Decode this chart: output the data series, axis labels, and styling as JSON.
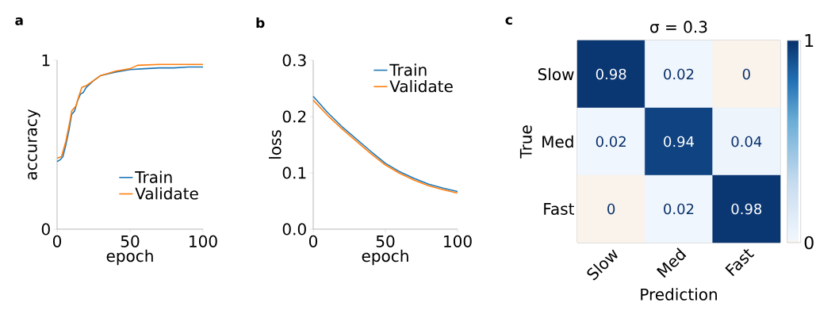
{
  "chart_data": [
    {
      "type": "line",
      "annotations": [
        "a"
      ],
      "xlabel": "epoch",
      "ylabel": "accuracy",
      "xlim": [
        0,
        100
      ],
      "ylim": [
        0,
        1
      ],
      "xticks": [
        0,
        50,
        100
      ],
      "yticks": [
        0,
        1
      ],
      "legend": "bottom right",
      "series": [
        {
          "name": "Train",
          "color": "#1f77b4",
          "x": [
            0,
            2,
            4,
            6,
            8,
            10,
            12,
            14,
            16,
            18,
            20,
            25,
            30,
            40,
            50,
            60,
            70,
            80,
            90,
            100
          ],
          "values": [
            0.4,
            0.41,
            0.43,
            0.5,
            0.58,
            0.68,
            0.7,
            0.76,
            0.8,
            0.81,
            0.84,
            0.88,
            0.91,
            0.93,
            0.945,
            0.95,
            0.955,
            0.955,
            0.96,
            0.96
          ]
        },
        {
          "name": "Validate",
          "color": "#ff7f0e",
          "x": [
            0,
            3,
            6,
            9,
            10,
            13,
            15,
            17,
            20,
            25,
            30,
            40,
            50,
            55,
            70,
            100
          ],
          "values": [
            0.42,
            0.43,
            0.52,
            0.65,
            0.7,
            0.73,
            0.79,
            0.84,
            0.85,
            0.88,
            0.91,
            0.935,
            0.95,
            0.97,
            0.975,
            0.975
          ]
        }
      ]
    },
    {
      "type": "line",
      "annotations": [
        "b"
      ],
      "xlabel": "epoch",
      "ylabel": "loss",
      "xlim": [
        0,
        100
      ],
      "ylim": [
        0,
        0.3
      ],
      "xticks": [
        0,
        50,
        100
      ],
      "yticks": [
        {
          "value": 0,
          "label": "0.0"
        },
        0.1,
        0.2,
        0.3
      ],
      "legend": "top right",
      "series": [
        {
          "name": "Train",
          "color": "#1f77b4",
          "x": [
            0,
            10,
            20,
            30,
            40,
            50,
            60,
            70,
            80,
            90,
            100
          ],
          "values": [
            0.236,
            0.207,
            0.182,
            0.16,
            0.138,
            0.117,
            0.102,
            0.09,
            0.08,
            0.073,
            0.067
          ]
        },
        {
          "name": "Validate",
          "color": "#ff7f0e",
          "x": [
            0,
            10,
            20,
            30,
            40,
            50,
            60,
            70,
            80,
            90,
            100
          ],
          "values": [
            0.229,
            0.202,
            0.178,
            0.156,
            0.134,
            0.114,
            0.099,
            0.087,
            0.077,
            0.07,
            0.064
          ]
        }
      ]
    },
    {
      "type": "heatmap",
      "annotations": [
        "c"
      ],
      "title": "σ = 0.3",
      "xlabel": "Prediction",
      "ylabel": "True",
      "categories": [
        "Slow",
        "Med",
        "Fast"
      ],
      "y_categories": [
        "Slow",
        "Med",
        "Fast"
      ],
      "cells": [
        [
          0.98,
          0.02,
          0
        ],
        [
          0.02,
          0.94,
          0.04
        ],
        [
          0,
          0.02,
          0.98
        ]
      ],
      "clim": [
        0,
        1
      ],
      "cticks": [
        0,
        1
      ],
      "data_labels": true
    }
  ]
}
